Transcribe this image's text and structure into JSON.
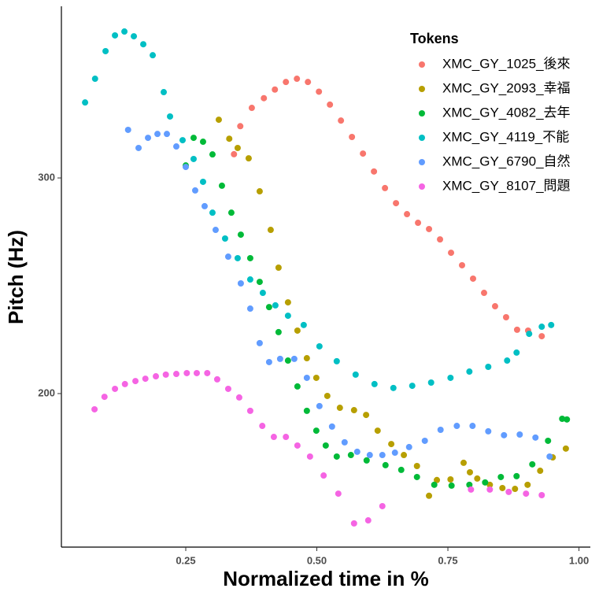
{
  "chart_data": {
    "type": "scatter",
    "x_label": "Normalized time in %",
    "y_label": "Pitch (Hz)",
    "legend_title": "Tokens",
    "legend": "top-right",
    "xlim": [
      0.0128,
      1.0217
    ],
    "ylim": [
      128.8,
      379.6
    ],
    "xticks": [
      {
        "value": 0.25,
        "label": "0.25"
      },
      {
        "value": 0.5,
        "label": "0.50"
      },
      {
        "value": 0.75,
        "label": "0.75"
      },
      {
        "value": 1.0,
        "label": "1.00"
      }
    ],
    "yticks": [
      200,
      300
    ],
    "grid": false,
    "series": [
      {
        "name": "XMC_GY_1025_後來",
        "color": "#F8766D",
        "x": [
          0.342,
          0.354,
          0.376,
          0.399,
          0.42,
          0.441,
          0.462,
          0.483,
          0.504,
          0.525,
          0.546,
          0.567,
          0.588,
          0.609,
          0.63,
          0.651,
          0.672,
          0.693,
          0.714,
          0.735,
          0.756,
          0.777,
          0.798,
          0.819,
          0.84,
          0.861,
          0.882,
          0.903,
          0.929
        ],
        "values": [
          311,
          324,
          332.5,
          337,
          341,
          344.5,
          346,
          344.5,
          340,
          334,
          326.6,
          319,
          311.3,
          303,
          295.3,
          288.3,
          283.2,
          279.2,
          276.3,
          271.5,
          265.3,
          259.5,
          253.3,
          246.7,
          240.5,
          235.4,
          229.6,
          229.2,
          226.6
        ]
      },
      {
        "name": "XMC_GY_2093_幸福",
        "color": "#B79F00",
        "x": [
          0.313,
          0.333,
          0.349,
          0.37,
          0.391,
          0.412,
          0.427,
          0.445,
          0.463,
          0.481,
          0.499,
          0.52,
          0.544,
          0.571,
          0.594,
          0.616,
          0.642,
          0.666,
          0.691,
          0.714,
          0.729,
          0.755,
          0.78,
          0.792,
          0.806,
          0.83,
          0.854,
          0.878,
          0.902,
          0.926,
          0.95,
          0.975
        ],
        "values": [
          327,
          318.2,
          313.9,
          309.1,
          293.8,
          275.9,
          258.4,
          242.3,
          229.2,
          216.4,
          207.3,
          198.9,
          193.4,
          192.3,
          190.1,
          182.8,
          176.6,
          171.5,
          166.4,
          152.6,
          159.9,
          160.2,
          167.9,
          163.5,
          160.6,
          157.7,
          156.2,
          155.8,
          157.7,
          164.2,
          170.4,
          174.5
        ]
      },
      {
        "name": "XMC_GY_4082_去年",
        "color": "#00BA38",
        "x": [
          0.25,
          0.265,
          0.283,
          0.301,
          0.319,
          0.337,
          0.355,
          0.373,
          0.391,
          0.409,
          0.427,
          0.445,
          0.463,
          0.481,
          0.499,
          0.517,
          0.538,
          0.565,
          0.595,
          0.631,
          0.661,
          0.691,
          0.724,
          0.757,
          0.791,
          0.821,
          0.851,
          0.881,
          0.911,
          0.941,
          0.968,
          0.977
        ],
        "values": [
          305.8,
          318.6,
          316.8,
          310.9,
          296.4,
          283.9,
          273.7,
          262.8,
          251.8,
          240.1,
          228.5,
          215.3,
          203.3,
          192,
          182.8,
          175.9,
          170.8,
          171.5,
          169,
          166.8,
          164.6,
          161.3,
          157.7,
          157.3,
          157.7,
          158.8,
          161.3,
          161.7,
          167.2,
          178.1,
          188.3,
          188
        ]
      },
      {
        "name": "XMC_GY_4119_不能",
        "color": "#00BFC4",
        "x": [
          0.058,
          0.077,
          0.097,
          0.115,
          0.133,
          0.151,
          0.169,
          0.187,
          0.208,
          0.22,
          0.244,
          0.265,
          0.283,
          0.301,
          0.325,
          0.349,
          0.373,
          0.397,
          0.421,
          0.445,
          0.475,
          0.505,
          0.538,
          0.574,
          0.61,
          0.646,
          0.682,
          0.718,
          0.755,
          0.791,
          0.827,
          0.863,
          0.881,
          0.905,
          0.929,
          0.947
        ],
        "values": [
          335,
          346,
          358.8,
          366.1,
          367.9,
          365.7,
          362,
          356.9,
          339.8,
          328.5,
          317.5,
          308.8,
          298.2,
          283.9,
          271.9,
          262.8,
          252.9,
          246.7,
          240.9,
          236.1,
          231.8,
          221.9,
          215,
          208.8,
          204.4,
          202.6,
          203.6,
          205.1,
          207.3,
          210.2,
          212.4,
          215.3,
          219,
          227.7,
          231,
          231.8
        ]
      },
      {
        "name": "XMC_GY_6790_自然",
        "color": "#619CFF",
        "x": [
          0.14,
          0.16,
          0.178,
          0.196,
          0.214,
          0.232,
          0.25,
          0.268,
          0.286,
          0.307,
          0.331,
          0.355,
          0.373,
          0.391,
          0.409,
          0.43,
          0.457,
          0.481,
          0.505,
          0.529,
          0.553,
          0.577,
          0.601,
          0.625,
          0.649,
          0.676,
          0.706,
          0.736,
          0.767,
          0.797,
          0.827,
          0.857,
          0.887,
          0.917,
          0.944
        ],
        "values": [
          322.3,
          313.9,
          318.6,
          320.4,
          320.4,
          314.6,
          305.1,
          294.2,
          286.9,
          275.9,
          263.5,
          251.1,
          239.4,
          223.4,
          214.6,
          216.1,
          216.1,
          207.3,
          194.2,
          184.7,
          177.4,
          173,
          171.5,
          171.5,
          172.6,
          175.2,
          178.1,
          183.2,
          185,
          185,
          182.5,
          180.7,
          181,
          179.6,
          170.8
        ]
      },
      {
        "name": "XMC_GY_8107_問題",
        "color": "#F564E3",
        "x": [
          0.076,
          0.095,
          0.115,
          0.134,
          0.154,
          0.173,
          0.193,
          0.212,
          0.232,
          0.252,
          0.271,
          0.291,
          0.31,
          0.331,
          0.352,
          0.373,
          0.396,
          0.418,
          0.441,
          0.463,
          0.487,
          0.513,
          0.541,
          0.571,
          0.598,
          0.625,
          0.794,
          0.83,
          0.866,
          0.899,
          0.929
        ],
        "values": [
          192.7,
          198.5,
          202.2,
          204.4,
          205.8,
          206.9,
          208,
          208.8,
          209.1,
          209.5,
          209.5,
          209.5,
          206.6,
          202.2,
          198.2,
          192,
          185,
          179.9,
          179.9,
          175.9,
          170.8,
          162,
          153.6,
          139.8,
          141.2,
          147.8,
          155.5,
          155.5,
          154.4,
          153.6,
          152.9
        ]
      }
    ]
  }
}
